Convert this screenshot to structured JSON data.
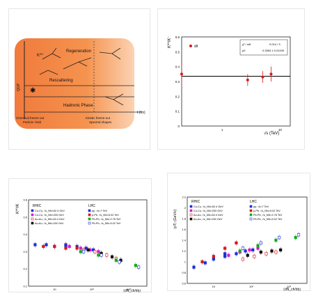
{
  "panel_a": {
    "labels": {
      "k_star": "K*⁰",
      "regeneration": "Regeneration",
      "rescattering": "Rescattering",
      "qgp": "QGP",
      "hadronic_phase": "Hadronic Phase",
      "chem_freeze_1": "Chemical freeze-out",
      "chem_freeze_2": "Particle Yield",
      "kin_freeze_1": "Kinetic freeze-out",
      "kin_freeze_2": "Spectral shapes",
      "t_axis": "t (fm)"
    },
    "colors": {
      "fill_left": "#f07a3c",
      "fill_right": "#fbd3b3"
    }
  },
  "panel_b": {
    "legend_series": "d/t",
    "stats": {
      "row1_left": "χ² / ndf",
      "row1_right": "0.014 / 3",
      "row2_left": "p0",
      "row2_right": "0.3354 ± 0.01195"
    },
    "ylabel": "K*⁰/K⁻",
    "xlabel": "√s (TeV)",
    "y_ticks": [
      "0.6",
      "0.5",
      "0.4",
      "0.3",
      "0.2",
      "0.1",
      "0"
    ],
    "x_ticks": [
      "1",
      "10"
    ],
    "colors": {
      "points": "#d61a1a",
      "fit": "#000000"
    }
  },
  "panel_c": {
    "ylabel": "K*⁰/K",
    "xlabel": "⟨dN_ch/dη⟩",
    "rhic_title": "RHIC",
    "lhc_title": "LHC",
    "rhic_entries": [
      "Cu-Cu, √s_NN=62.4 GeV",
      "Cu-Cu, √s_NN=200 GeV",
      "Au-Au, √s_NN=62.4 GeV",
      "Au-Au, √s_NN=200 GeV"
    ],
    "lhc_entries": [
      "pp, √s=7 TeV",
      "p-Pb, √s_NN=5.02 TeV",
      "Pb-Pb, √s_NN=2.76 TeV",
      "Pb-Pb, √s_NN=5.02 TeV"
    ],
    "y_ticks": [
      "0.6",
      "0.5",
      "0.4",
      "0.3",
      "0.2",
      "0.1"
    ],
    "x_ticks": [
      "10",
      "10²",
      "10³"
    ],
    "colors": [
      "#1c2fd6",
      "#d61ad6",
      "#d61a1a",
      "#111111",
      "#1c2fd6",
      "#d61a1a",
      "#1aa81a",
      "#1c2fd6"
    ]
  },
  "panel_d": {
    "ylabel": "⟨pT⟩ (GeV/c)",
    "xlabel": "⟨dN_ch/dη⟩",
    "rhic_title": "RHIC",
    "lhc_title": "LHC",
    "rhic_entries": [
      "Cu-Cu, √s_NN=62.4 GeV",
      "Cu-Cu, √s_NN=200 GeV",
      "Au-Au, √s_NN=62.4 GeV",
      "Au-Au, √s_NN=200 GeV"
    ],
    "lhc_entries": [
      "pp, √s=7 TeV",
      "p-Pb, √s_NN=5.02 TeV",
      "Pb-Pb, √s_NN=2.76 TeV",
      "Pb-Pb, √s_NN=5.02 TeV"
    ],
    "y_ticks": [
      "2.2",
      "2",
      "1.8",
      "1.6",
      "1.4",
      "1.2",
      "1",
      "0.8",
      "0.6"
    ],
    "x_ticks": [
      "10",
      "10²",
      "10³"
    ]
  },
  "chart_data": [
    {
      "type": "scatter",
      "title": "",
      "xlabel": "√s (TeV)",
      "ylabel": "K*⁰/K⁻",
      "log_x": true,
      "xlim": [
        0.2,
        15
      ],
      "ylim": [
        0,
        0.6
      ],
      "series": [
        {
          "name": "d/t",
          "x": [
            0.2,
            2.76,
            5.02,
            7
          ],
          "y": [
            0.35,
            0.31,
            0.33,
            0.35
          ],
          "yerr": [
            0.07,
            0.04,
            0.04,
            0.05
          ]
        }
      ],
      "fit": {
        "type": "constant",
        "value": 0.3354
      }
    },
    {
      "type": "scatter",
      "title": "",
      "xlabel": "⟨dN_ch/dη⟩",
      "ylabel": "K*⁰/K",
      "log_x": true,
      "xlim": [
        2,
        3000
      ],
      "ylim": [
        0.1,
        0.6
      ],
      "series": [
        {
          "name": "Cu-Cu, √s_NN=62.4 GeV",
          "x": [
            20,
            40,
            70,
            110
          ],
          "y": [
            0.34,
            0.33,
            0.32,
            0.31
          ]
        },
        {
          "name": "Cu-Cu, √s_NN=200 GeV",
          "x": [
            25,
            50,
            90,
            150
          ],
          "y": [
            0.33,
            0.32,
            0.31,
            0.3
          ]
        },
        {
          "name": "Au-Au, √s_NN=62.4 GeV",
          "x": [
            60,
            120,
            250,
            450
          ],
          "y": [
            0.31,
            0.3,
            0.28,
            0.26
          ]
        },
        {
          "name": "Au-Au, √s_NN=200 GeV",
          "x": [
            80,
            180,
            350,
            600
          ],
          "y": [
            0.31,
            0.29,
            0.27,
            0.25
          ]
        },
        {
          "name": "pp, √s=7 TeV",
          "x": [
            3,
            6,
            10,
            20
          ],
          "y": [
            0.34,
            0.34,
            0.33,
            0.33
          ]
        },
        {
          "name": "p-Pb, √s_NN=5.02 TeV",
          "x": [
            5,
            10,
            20,
            40
          ],
          "y": [
            0.33,
            0.33,
            0.32,
            0.32
          ]
        },
        {
          "name": "Pb-Pb, √s_NN=2.76 TeV",
          "x": [
            50,
            150,
            450,
            1500
          ],
          "y": [
            0.3,
            0.28,
            0.25,
            0.22
          ]
        },
        {
          "name": "Pb-Pb, √s_NN=5.02 TeV",
          "x": [
            60,
            180,
            550,
            1800
          ],
          "y": [
            0.3,
            0.28,
            0.24,
            0.21
          ]
        }
      ]
    },
    {
      "type": "scatter",
      "title": "",
      "xlabel": "⟨dN_ch/dη⟩",
      "ylabel": "⟨pT⟩ (GeV/c)",
      "log_x": true,
      "xlim": [
        2,
        3000
      ],
      "ylim": [
        0.6,
        2.2
      ],
      "series": [
        {
          "name": "Cu-Cu, √s_NN=62.4 GeV",
          "x": [
            20,
            40,
            70,
            110
          ],
          "y": [
            1.1,
            1.15,
            1.2,
            1.22
          ]
        },
        {
          "name": "Cu-Cu, √s_NN=200 GeV",
          "x": [
            25,
            50,
            90,
            150
          ],
          "y": [
            1.12,
            1.18,
            1.22,
            1.25
          ]
        },
        {
          "name": "Au-Au, √s_NN=62.4 GeV",
          "x": [
            60,
            120,
            250,
            450
          ],
          "y": [
            1.05,
            1.1,
            1.15,
            1.18
          ]
        },
        {
          "name": "Au-Au, √s_NN=200 GeV",
          "x": [
            80,
            180,
            350,
            600
          ],
          "y": [
            1.12,
            1.18,
            1.2,
            1.22
          ]
        },
        {
          "name": "pp, √s=7 TeV",
          "x": [
            3,
            6,
            10,
            20
          ],
          "y": [
            0.9,
            0.98,
            1.05,
            1.15
          ]
        },
        {
          "name": "p-Pb, √s_NN=5.02 TeV",
          "x": [
            5,
            10,
            20,
            40
          ],
          "y": [
            1.0,
            1.1,
            1.25,
            1.35
          ]
        },
        {
          "name": "Pb-Pb, √s_NN=2.76 TeV",
          "x": [
            50,
            150,
            450,
            1500
          ],
          "y": [
            1.2,
            1.3,
            1.4,
            1.45
          ]
        },
        {
          "name": "Pb-Pb, √s_NN=5.02 TeV",
          "x": [
            60,
            180,
            550,
            1800
          ],
          "y": [
            1.25,
            1.35,
            1.45,
            1.5
          ]
        }
      ]
    }
  ]
}
